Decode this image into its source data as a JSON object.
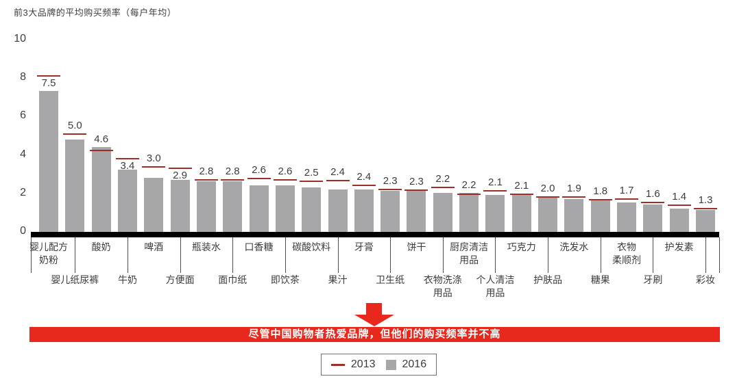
{
  "title": "前3大品牌的平均购买频率（每户年均）",
  "banner": {
    "text": "尽管中国购物者热爱品牌，但他们的购买频率并不高"
  },
  "legend": {
    "items": [
      {
        "label": "2013",
        "marker": "dash"
      },
      {
        "label": "2016",
        "marker": "square"
      }
    ]
  },
  "colors": {
    "bar_gray": "#a7a7aa",
    "marker_dark_red": "#9e2f28",
    "accent_red": "#e8281d",
    "text_dark": "#3d3d3d",
    "axis_black": "#000000"
  },
  "chart_data": {
    "type": "bar",
    "title": "前3大品牌的平均购买频率（每户年均）",
    "xlabel": "",
    "ylabel": "",
    "ylim": [
      0,
      10
    ],
    "yticks": [
      0,
      2,
      4,
      6,
      8,
      10
    ],
    "grid": false,
    "legend_position": "bottom",
    "bar_labels_shown_for": "2016",
    "annotation": "尽管中国购物者热爱品牌，但他们的购买频率并不高",
    "categories": [
      "婴儿配方奶粉",
      "婴儿纸尿裤",
      "酸奶",
      "牛奶",
      "啤酒",
      "方便面",
      "瓶装水",
      "面巾纸",
      "口香糖",
      "即饮茶",
      "碳酸饮料",
      "果汁",
      "牙膏",
      "卫生纸",
      "饼干",
      "衣物洗涤用品",
      "厨房清洁用品",
      "个人清洁用品",
      "巧克力",
      "护肤品",
      "洗发水",
      "糖果",
      "衣物柔顺剂",
      "牙刷",
      "护发素",
      "彩妆"
    ],
    "category_label_lines": [
      [
        "婴儿配方",
        "奶粉"
      ],
      [
        "婴儿纸尿裤"
      ],
      [
        "酸奶"
      ],
      [
        "牛奶"
      ],
      [
        "啤酒"
      ],
      [
        "方便面"
      ],
      [
        "瓶装水"
      ],
      [
        "面巾纸"
      ],
      [
        "口香糖"
      ],
      [
        "即饮茶"
      ],
      [
        "碳酸饮料"
      ],
      [
        "果汁"
      ],
      [
        "牙膏"
      ],
      [
        "卫生纸"
      ],
      [
        "饼干"
      ],
      [
        "衣物洗涤",
        "用品"
      ],
      [
        "厨房清洁",
        "用品"
      ],
      [
        "个人清洁",
        "用品"
      ],
      [
        "巧克力"
      ],
      [
        "护肤品"
      ],
      [
        "洗发水"
      ],
      [
        "糖果"
      ],
      [
        "衣物",
        "柔顺剂"
      ],
      [
        "牙刷"
      ],
      [
        "护发素"
      ],
      [
        "彩妆"
      ]
    ],
    "series": [
      {
        "name": "2016",
        "style": "bar",
        "values": [
          7.5,
          5.0,
          4.6,
          3.4,
          3.0,
          2.9,
          2.8,
          2.8,
          2.6,
          2.6,
          2.5,
          2.4,
          2.4,
          2.3,
          2.3,
          2.2,
          2.2,
          2.1,
          2.1,
          2.0,
          1.9,
          1.8,
          1.7,
          1.6,
          1.4,
          1.3
        ]
      },
      {
        "name": "2013",
        "style": "dash-marker",
        "values_estimated": true,
        "values": [
          8.3,
          5.25,
          4.4,
          4.0,
          3.55,
          3.5,
          2.9,
          2.9,
          2.95,
          2.9,
          2.8,
          2.85,
          2.6,
          2.4,
          2.35,
          2.5,
          2.15,
          2.3,
          2.15,
          2.0,
          2.0,
          1.85,
          1.9,
          1.7,
          1.55,
          1.4
        ]
      }
    ]
  }
}
